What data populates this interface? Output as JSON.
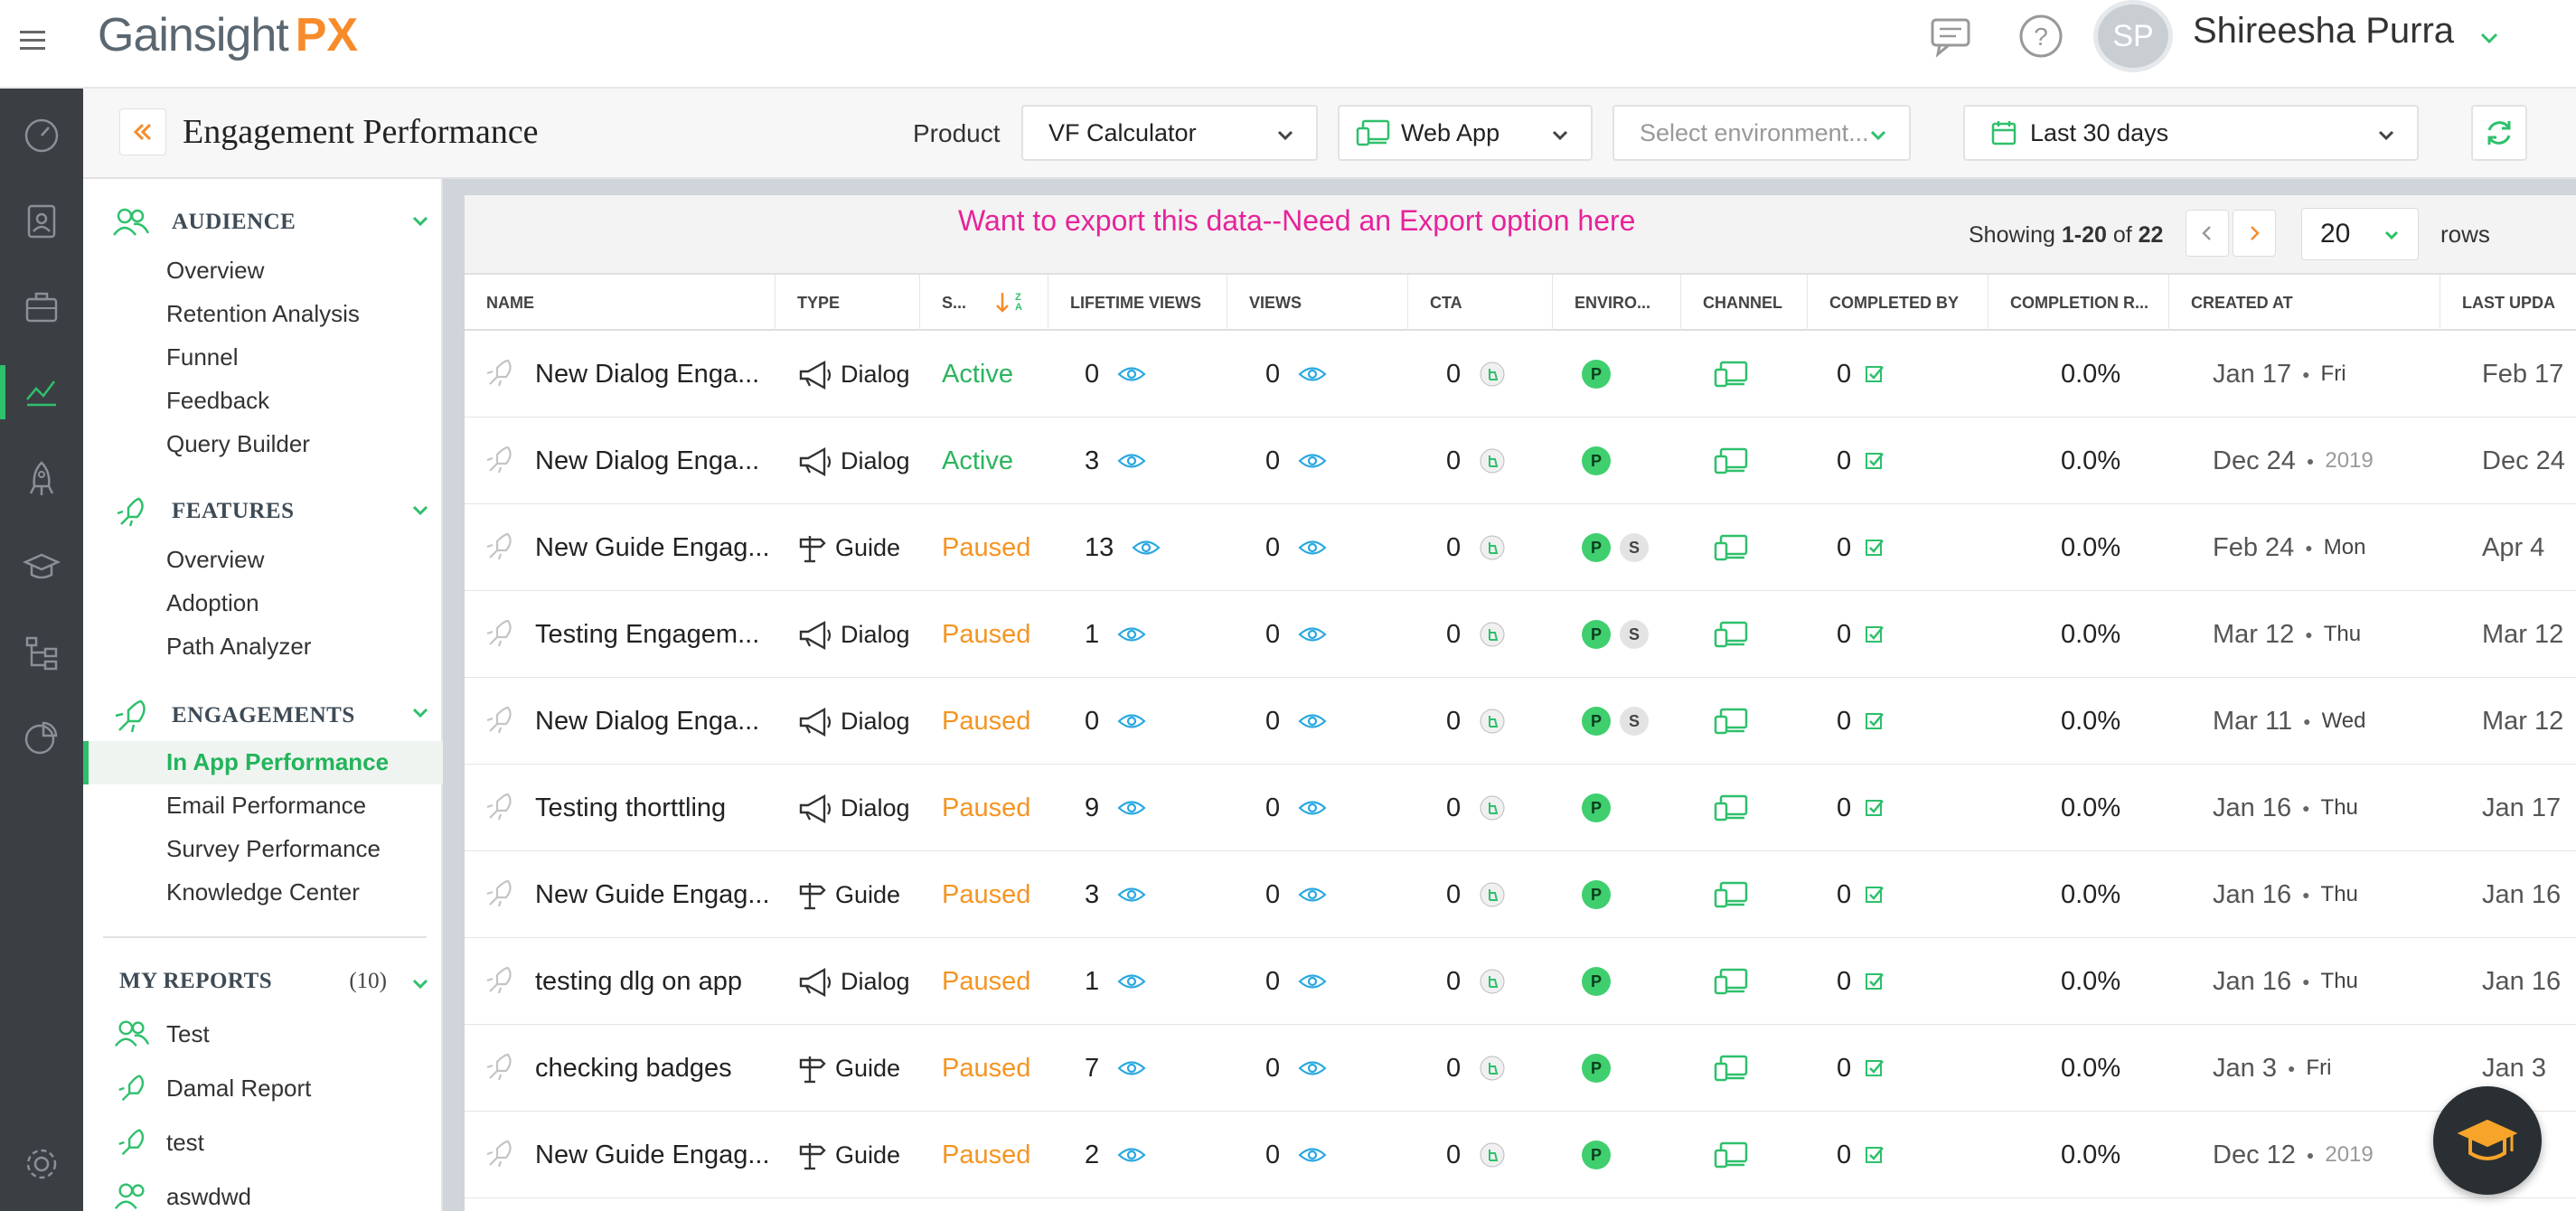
{
  "app": {
    "logo_main": "Gainsight",
    "logo_px": "PX"
  },
  "user": {
    "initials": "SP",
    "name": "Shireesha Purra"
  },
  "header": {
    "title": "Engagement Performance",
    "product_label": "Product",
    "product_value": "VF Calculator",
    "channel_value": "Web App",
    "environment_placeholder": "Select environment...",
    "date_range": "Last 30 days"
  },
  "sidebar": {
    "sections": [
      {
        "label": "AUDIENCE",
        "items": [
          "Overview",
          "Retention Analysis",
          "Funnel",
          "Feedback",
          "Query Builder"
        ]
      },
      {
        "label": "FEATURES",
        "items": [
          "Overview",
          "Adoption",
          "Path Analyzer"
        ]
      },
      {
        "label": "ENGAGEMENTS",
        "items": [
          "In App Performance",
          "Email Performance",
          "Survey Performance",
          "Knowledge Center"
        ]
      }
    ],
    "active_item": "In App Performance",
    "my_reports": {
      "label": "MY REPORTS",
      "count": "(10)",
      "items": [
        "Test",
        "Damal Report",
        "test",
        "aswdwd"
      ]
    }
  },
  "toolbar": {
    "export_note": "Want to export this data--Need an Export option here",
    "showing_prefix": "Showing ",
    "showing_range": "1-20",
    "showing_of": " of ",
    "showing_total": "22",
    "rows_per_page": "20",
    "rows_label": "rows"
  },
  "table": {
    "columns": [
      "NAME",
      "TYPE",
      "S...",
      "LIFETIME VIEWS",
      "VIEWS",
      "CTA",
      "ENVIRO...",
      "CHANNEL",
      "COMPLETED BY",
      "COMPLETION R...",
      "CREATED AT",
      "LAST UPDA"
    ],
    "sort_glyph_top": "Z",
    "sort_glyph_bottom": "A",
    "rows": [
      {
        "name": "New Dialog Enga...",
        "type": "Dialog",
        "type_icon": "megaphone",
        "status": "Active",
        "lifetime_views": "0",
        "views": "0",
        "cta": "0",
        "env": [
          "P"
        ],
        "completed_by": "0",
        "completion_rate": "0.0%",
        "created": "Jan 17",
        "created_sub": "Fri",
        "created_sub_is_year": false,
        "updated": "Feb 17"
      },
      {
        "name": "New Dialog Enga...",
        "type": "Dialog",
        "type_icon": "megaphone",
        "status": "Active",
        "lifetime_views": "3",
        "views": "0",
        "cta": "0",
        "env": [
          "P"
        ],
        "completed_by": "0",
        "completion_rate": "0.0%",
        "created": "Dec 24",
        "created_sub": "2019",
        "created_sub_is_year": true,
        "updated": "Dec 24"
      },
      {
        "name": "New Guide Engag...",
        "type": "Guide",
        "type_icon": "signpost",
        "status": "Paused",
        "lifetime_views": "13",
        "views": "0",
        "cta": "0",
        "env": [
          "P",
          "S"
        ],
        "completed_by": "0",
        "completion_rate": "0.0%",
        "created": "Feb 24",
        "created_sub": "Mon",
        "created_sub_is_year": false,
        "updated": "Apr 4"
      },
      {
        "name": "Testing Engagem...",
        "type": "Dialog",
        "type_icon": "megaphone",
        "status": "Paused",
        "lifetime_views": "1",
        "views": "0",
        "cta": "0",
        "env": [
          "P",
          "S"
        ],
        "completed_by": "0",
        "completion_rate": "0.0%",
        "created": "Mar 12",
        "created_sub": "Thu",
        "created_sub_is_year": false,
        "updated": "Mar 12"
      },
      {
        "name": "New Dialog Enga...",
        "type": "Dialog",
        "type_icon": "megaphone",
        "status": "Paused",
        "lifetime_views": "0",
        "views": "0",
        "cta": "0",
        "env": [
          "P",
          "S"
        ],
        "completed_by": "0",
        "completion_rate": "0.0%",
        "created": "Mar 11",
        "created_sub": "Wed",
        "created_sub_is_year": false,
        "updated": "Mar 12"
      },
      {
        "name": "Testing thorttling",
        "type": "Dialog",
        "type_icon": "megaphone",
        "status": "Paused",
        "lifetime_views": "9",
        "views": "0",
        "cta": "0",
        "env": [
          "P"
        ],
        "completed_by": "0",
        "completion_rate": "0.0%",
        "created": "Jan 16",
        "created_sub": "Thu",
        "created_sub_is_year": false,
        "updated": "Jan 17"
      },
      {
        "name": "New Guide Engag...",
        "type": "Guide",
        "type_icon": "signpost",
        "status": "Paused",
        "lifetime_views": "3",
        "views": "0",
        "cta": "0",
        "env": [
          "P"
        ],
        "completed_by": "0",
        "completion_rate": "0.0%",
        "created": "Jan 16",
        "created_sub": "Thu",
        "created_sub_is_year": false,
        "updated": "Jan 16"
      },
      {
        "name": "testing dlg on app",
        "type": "Dialog",
        "type_icon": "megaphone",
        "status": "Paused",
        "lifetime_views": "1",
        "views": "0",
        "cta": "0",
        "env": [
          "P"
        ],
        "completed_by": "0",
        "completion_rate": "0.0%",
        "created": "Jan 16",
        "created_sub": "Thu",
        "created_sub_is_year": false,
        "updated": "Jan 16"
      },
      {
        "name": "checking badges",
        "type": "Guide",
        "type_icon": "signpost",
        "status": "Paused",
        "lifetime_views": "7",
        "views": "0",
        "cta": "0",
        "env": [
          "P"
        ],
        "completed_by": "0",
        "completion_rate": "0.0%",
        "created": "Jan 3",
        "created_sub": "Fri",
        "created_sub_is_year": false,
        "updated": "Jan 3"
      },
      {
        "name": "New Guide Engag...",
        "type": "Guide",
        "type_icon": "signpost",
        "status": "Paused",
        "lifetime_views": "2",
        "views": "0",
        "cta": "0",
        "env": [
          "P"
        ],
        "completed_by": "0",
        "completion_rate": "0.0%",
        "created": "Dec 12",
        "created_sub": "2019",
        "created_sub_is_year": true,
        "updated": "12"
      }
    ]
  },
  "colors": {
    "accent_green": "#2ec06b",
    "paused_orange": "#f59422",
    "export_note_pink": "#e6239a",
    "rail": "#3b3f44",
    "logo_orange": "#f78b2a"
  },
  "icons": {
    "rail": [
      "speedometer-icon",
      "clipboard-user-icon",
      "briefcase-icon",
      "line-chart-icon",
      "rocket-icon",
      "graduation-cap-icon",
      "tree-icon",
      "pie-chart-icon",
      "gear-icon"
    ],
    "top": [
      "chat-icon",
      "help-icon"
    ]
  }
}
